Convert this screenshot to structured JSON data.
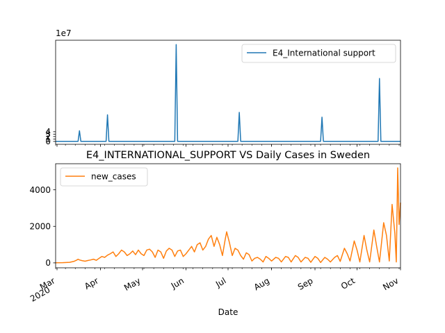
{
  "chart_data": [
    {
      "type": "line",
      "title": "",
      "xlabel": "",
      "ylabel": "",
      "y_multiplier_label": "1e7",
      "ylim": [
        -1.2,
        41.8
      ],
      "yticks": [
        0,
        1,
        2,
        3,
        4
      ],
      "legend": "upper right",
      "x_start": "2020-02-29",
      "x_end": "2020-11-01",
      "series": [
        {
          "name": "E4_International support",
          "color": "#1f77b4",
          "units": "1e7",
          "points": [
            [
              "2020-02-29",
              0
            ],
            [
              "2020-03-16",
              0
            ],
            [
              "2020-03-17",
              4.4
            ],
            [
              "2020-03-18",
              0
            ],
            [
              "2020-04-05",
              0
            ],
            [
              "2020-04-06",
              11.0
            ],
            [
              "2020-04-07",
              0
            ],
            [
              "2020-05-24",
              0
            ],
            [
              "2020-05-25",
              40.0
            ],
            [
              "2020-05-26",
              0
            ],
            [
              "2020-07-08",
              0
            ],
            [
              "2020-07-09",
              12.0
            ],
            [
              "2020-07-10",
              0
            ],
            [
              "2020-09-05",
              0
            ],
            [
              "2020-09-06",
              10.0
            ],
            [
              "2020-09-07",
              0
            ],
            [
              "2020-10-16",
              0
            ],
            [
              "2020-10-17",
              26.0
            ],
            [
              "2020-10-18",
              0
            ],
            [
              "2020-11-01",
              0
            ]
          ]
        }
      ]
    },
    {
      "type": "line",
      "title": "E4_INTERNATIONAL_SUPPORT VS Daily Cases in Sweden",
      "xlabel": "Date",
      "ylabel": "",
      "ylim": [
        -270,
        5430
      ],
      "yticks": [
        0,
        2000,
        4000
      ],
      "legend": "upper left",
      "x_start": "2020-02-29",
      "x_end": "2020-11-01",
      "month_ticks": [
        {
          "date": "2020-03-01",
          "label": "Mar",
          "year": "2020"
        },
        {
          "date": "2020-04-01",
          "label": "Apr"
        },
        {
          "date": "2020-05-01",
          "label": "May"
        },
        {
          "date": "2020-06-01",
          "label": "Jun"
        },
        {
          "date": "2020-07-01",
          "label": "Jul"
        },
        {
          "date": "2020-08-01",
          "label": "Aug"
        },
        {
          "date": "2020-09-01",
          "label": "Sep"
        },
        {
          "date": "2020-10-01",
          "label": "Oct"
        },
        {
          "date": "2020-11-01",
          "label": "Nov"
        }
      ],
      "series": [
        {
          "name": "new_cases",
          "color": "#ff7f0e",
          "points": [
            [
              "2020-02-29",
              5
            ],
            [
              "2020-03-05",
              10
            ],
            [
              "2020-03-10",
              30
            ],
            [
              "2020-03-13",
              80
            ],
            [
              "2020-03-15",
              150
            ],
            [
              "2020-03-16",
              200
            ],
            [
              "2020-03-17",
              160
            ],
            [
              "2020-03-19",
              120
            ],
            [
              "2020-03-21",
              90
            ],
            [
              "2020-03-23",
              130
            ],
            [
              "2020-03-25",
              160
            ],
            [
              "2020-03-27",
              200
            ],
            [
              "2020-03-29",
              140
            ],
            [
              "2020-03-31",
              250
            ],
            [
              "2020-04-02",
              350
            ],
            [
              "2020-04-04",
              300
            ],
            [
              "2020-04-06",
              420
            ],
            [
              "2020-04-08",
              500
            ],
            [
              "2020-04-10",
              600
            ],
            [
              "2020-04-12",
              350
            ],
            [
              "2020-04-14",
              500
            ],
            [
              "2020-04-16",
              700
            ],
            [
              "2020-04-18",
              600
            ],
            [
              "2020-04-20",
              400
            ],
            [
              "2020-04-22",
              500
            ],
            [
              "2020-04-24",
              650
            ],
            [
              "2020-04-26",
              450
            ],
            [
              "2020-04-28",
              700
            ],
            [
              "2020-04-30",
              500
            ],
            [
              "2020-05-02",
              400
            ],
            [
              "2020-05-04",
              700
            ],
            [
              "2020-05-06",
              750
            ],
            [
              "2020-05-08",
              600
            ],
            [
              "2020-05-10",
              300
            ],
            [
              "2020-05-12",
              700
            ],
            [
              "2020-05-14",
              600
            ],
            [
              "2020-05-16",
              250
            ],
            [
              "2020-05-18",
              650
            ],
            [
              "2020-05-20",
              800
            ],
            [
              "2020-05-22",
              700
            ],
            [
              "2020-05-24",
              350
            ],
            [
              "2020-05-26",
              650
            ],
            [
              "2020-05-28",
              700
            ],
            [
              "2020-05-30",
              350
            ],
            [
              "2020-06-01",
              500
            ],
            [
              "2020-06-03",
              700
            ],
            [
              "2020-06-05",
              900
            ],
            [
              "2020-06-07",
              600
            ],
            [
              "2020-06-09",
              1000
            ],
            [
              "2020-06-11",
              1100
            ],
            [
              "2020-06-13",
              700
            ],
            [
              "2020-06-15",
              900
            ],
            [
              "2020-06-17",
              1300
            ],
            [
              "2020-06-19",
              1500
            ],
            [
              "2020-06-21",
              900
            ],
            [
              "2020-06-23",
              1400
            ],
            [
              "2020-06-25",
              1000
            ],
            [
              "2020-06-27",
              400
            ],
            [
              "2020-06-29",
              1300
            ],
            [
              "2020-06-30",
              1700
            ],
            [
              "2020-07-02",
              1100
            ],
            [
              "2020-07-04",
              400
            ],
            [
              "2020-07-06",
              800
            ],
            [
              "2020-07-08",
              700
            ],
            [
              "2020-07-10",
              400
            ],
            [
              "2020-07-12",
              200
            ],
            [
              "2020-07-14",
              550
            ],
            [
              "2020-07-16",
              450
            ],
            [
              "2020-07-18",
              100
            ],
            [
              "2020-07-20",
              250
            ],
            [
              "2020-07-22",
              300
            ],
            [
              "2020-07-24",
              200
            ],
            [
              "2020-07-26",
              50
            ],
            [
              "2020-07-28",
              350
            ],
            [
              "2020-07-30",
              250
            ],
            [
              "2020-08-01",
              100
            ],
            [
              "2020-08-04",
              300
            ],
            [
              "2020-08-06",
              250
            ],
            [
              "2020-08-08",
              50
            ],
            [
              "2020-08-11",
              350
            ],
            [
              "2020-08-13",
              300
            ],
            [
              "2020-08-15",
              50
            ],
            [
              "2020-08-18",
              400
            ],
            [
              "2020-08-20",
              300
            ],
            [
              "2020-08-22",
              50
            ],
            [
              "2020-08-25",
              300
            ],
            [
              "2020-08-27",
              250
            ],
            [
              "2020-08-29",
              30
            ],
            [
              "2020-09-01",
              350
            ],
            [
              "2020-09-03",
              250
            ],
            [
              "2020-09-05",
              20
            ],
            [
              "2020-09-08",
              300
            ],
            [
              "2020-09-10",
              200
            ],
            [
              "2020-09-12",
              50
            ],
            [
              "2020-09-15",
              300
            ],
            [
              "2020-09-17",
              400
            ],
            [
              "2020-09-19",
              80
            ],
            [
              "2020-09-22",
              800
            ],
            [
              "2020-09-24",
              500
            ],
            [
              "2020-09-26",
              100
            ],
            [
              "2020-09-29",
              1200
            ],
            [
              "2020-10-01",
              700
            ],
            [
              "2020-10-03",
              50
            ],
            [
              "2020-10-06",
              1500
            ],
            [
              "2020-10-08",
              700
            ],
            [
              "2020-10-10",
              50
            ],
            [
              "2020-10-13",
              1800
            ],
            [
              "2020-10-15",
              900
            ],
            [
              "2020-10-17",
              50
            ],
            [
              "2020-10-20",
              2200
            ],
            [
              "2020-10-22",
              1500
            ],
            [
              "2020-10-24",
              100
            ],
            [
              "2020-10-26",
              3200
            ],
            [
              "2020-10-28",
              1600
            ],
            [
              "2020-10-29",
              50
            ],
            [
              "2020-10-30",
              5200
            ],
            [
              "2020-10-31",
              2100
            ],
            [
              "2020-11-01",
              3300
            ]
          ]
        }
      ]
    }
  ]
}
